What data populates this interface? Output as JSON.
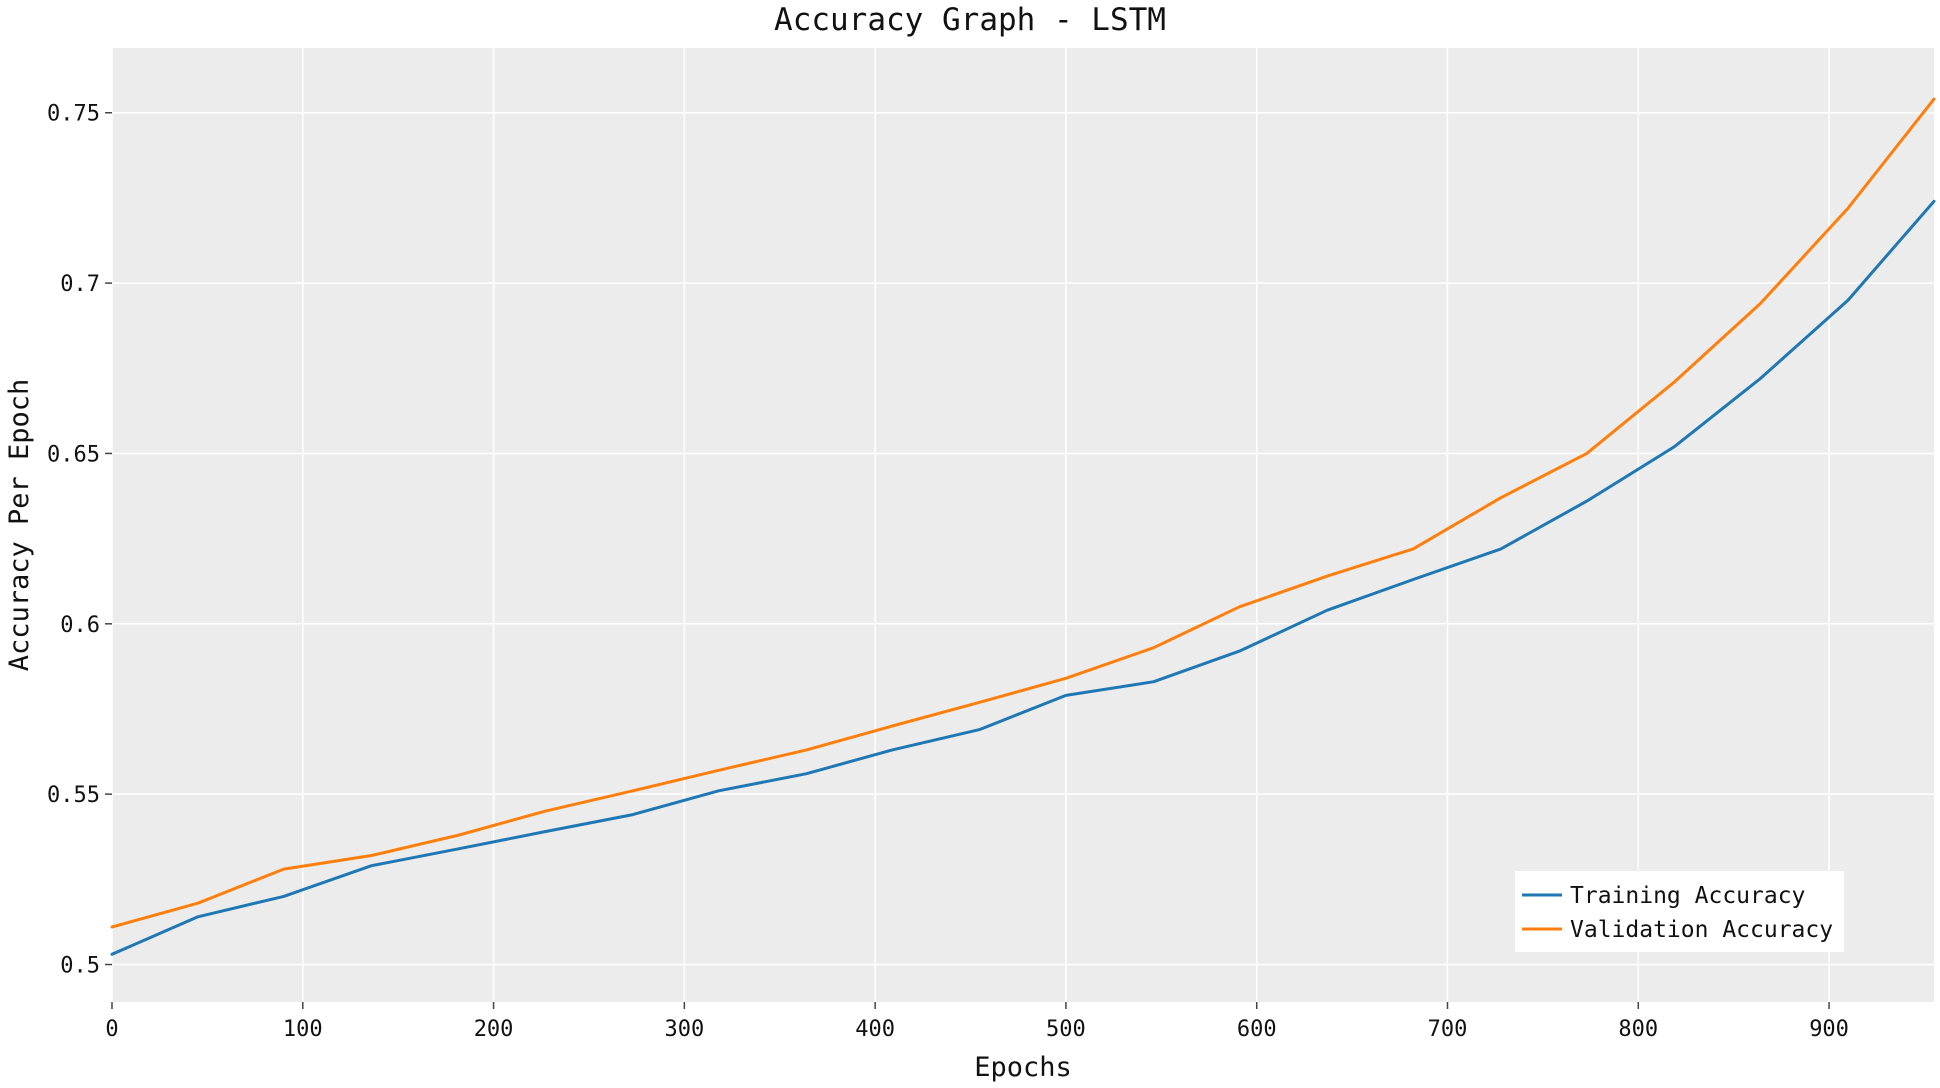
{
  "chart_data": {
    "type": "line",
    "title": "Accuracy Graph - LSTM",
    "xlabel": "Epochs",
    "ylabel": "Accuracy Per Epoch",
    "xlim": [
      0,
      955
    ],
    "ylim": [
      0.489,
      0.769
    ],
    "x_ticks": [
      0,
      100,
      200,
      300,
      400,
      500,
      600,
      700,
      800,
      900
    ],
    "x_tick_labels": [
      "0",
      "100",
      "200",
      "300",
      "400",
      "500",
      "600",
      "700",
      "800",
      "900"
    ],
    "y_ticks": [
      0.5,
      0.55,
      0.6,
      0.65,
      0.7,
      0.75
    ],
    "y_tick_labels": [
      "0.5",
      "0.55",
      "0.6",
      "0.65",
      "0.7",
      "0.75"
    ],
    "grid": true,
    "legend_position": "bottom-right",
    "background_color": "#ececec",
    "grid_color": "#ffffff",
    "x": [
      0,
      45,
      90,
      136,
      182,
      227,
      273,
      318,
      364,
      409,
      455,
      500,
      546,
      591,
      637,
      682,
      728,
      773,
      819,
      864,
      910,
      955
    ],
    "series": [
      {
        "name": "Training Accuracy",
        "color": "#1f77b4",
        "values": [
          0.503,
          0.514,
          0.52,
          0.529,
          0.534,
          0.539,
          0.544,
          0.551,
          0.556,
          0.563,
          0.569,
          0.579,
          0.583,
          0.592,
          0.604,
          0.613,
          0.622,
          0.636,
          0.652,
          0.672,
          0.695,
          0.724
        ]
      },
      {
        "name": "Validation Accuracy",
        "color": "#ff7f0e",
        "values": [
          0.511,
          0.518,
          0.528,
          0.532,
          0.538,
          0.545,
          0.551,
          0.557,
          0.563,
          0.57,
          0.577,
          0.584,
          0.593,
          0.605,
          0.614,
          0.622,
          0.637,
          0.65,
          0.671,
          0.694,
          0.722,
          0.754
        ]
      }
    ]
  }
}
